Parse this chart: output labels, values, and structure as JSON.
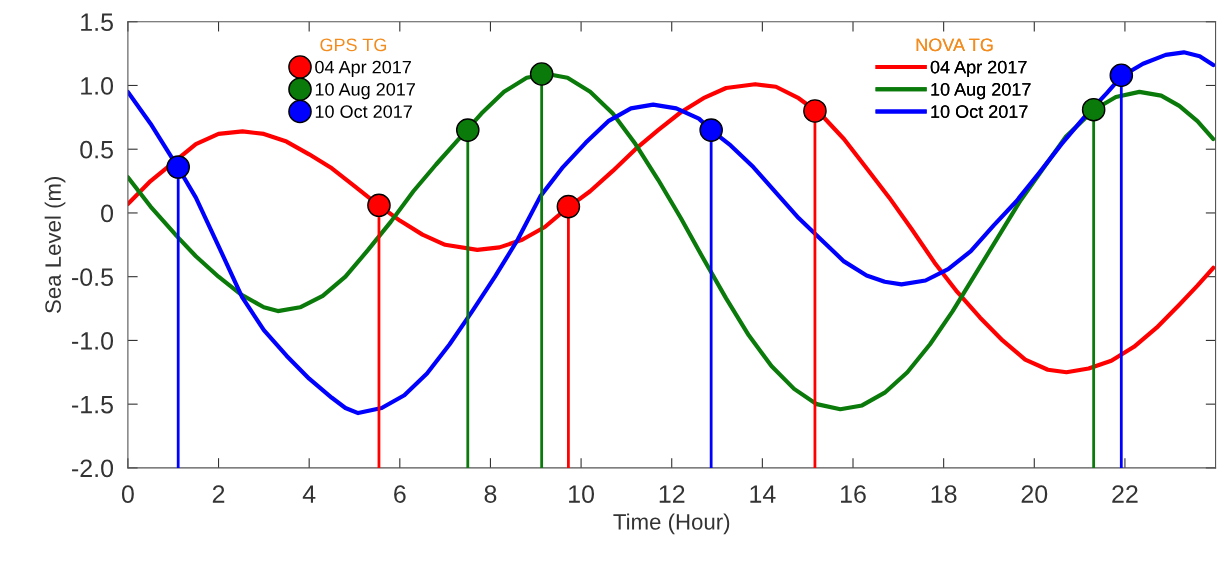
{
  "chart_data": {
    "type": "line",
    "xlabel": "Time (Hour)",
    "ylabel": "Sea Level (m)",
    "xlim": [
      0,
      24
    ],
    "xticks": [
      0,
      2,
      4,
      6,
      8,
      10,
      12,
      14,
      16,
      18,
      20,
      22
    ],
    "ylim": [
      -2.0,
      1.5
    ],
    "yticks": [
      {
        "value": -2.0,
        "label": "-2.0"
      },
      -1.5,
      {
        "value": -1.0,
        "label": "-1.0"
      },
      -0.5,
      0,
      0.5,
      {
        "value": 1.0,
        "label": "1.0"
      },
      1.5
    ],
    "grid": false,
    "legend": "top",
    "line_style": "solid",
    "annotations": [
      "GPS TG",
      "NOVA TG"
    ],
    "series": [
      {
        "name": "04 Apr 2017",
        "color": "#ff0000",
        "x": [
          0,
          0.5,
          1.5,
          2,
          2.53,
          3,
          3.5,
          4,
          4.5,
          5,
          5.5,
          6,
          6.5,
          7,
          7.71,
          8.2,
          8.7,
          9.2,
          9.7,
          10.2,
          10.7,
          11.2,
          11.7,
          12.2,
          12.7,
          13.2,
          13.84,
          14.3,
          14.8,
          15.3,
          15.8,
          16.3,
          16.8,
          17.3,
          17.8,
          18.3,
          18.8,
          19.3,
          19.8,
          20.3,
          20.71,
          21.2,
          21.7,
          22.2,
          22.7,
          23.2,
          23.6,
          23.95
        ],
        "values": [
          0.07,
          0.25,
          0.54,
          0.62,
          0.64,
          0.62,
          0.56,
          0.46,
          0.35,
          0.21,
          0.07,
          -0.06,
          -0.17,
          -0.25,
          -0.29,
          -0.27,
          -0.21,
          -0.11,
          0.04,
          0.17,
          0.33,
          0.5,
          0.65,
          0.79,
          0.9,
          0.98,
          1.01,
          0.99,
          0.9,
          0.77,
          0.58,
          0.35,
          0.12,
          -0.13,
          -0.39,
          -0.62,
          -0.82,
          -1.0,
          -1.15,
          -1.23,
          -1.25,
          -1.22,
          -1.16,
          -1.05,
          -0.9,
          -0.72,
          -0.57,
          -0.43
        ]
      },
      {
        "name": "10 Aug 2017",
        "color": "#0a7a0a",
        "x": [
          0,
          0.5,
          1.1,
          1.5,
          2,
          2.5,
          3,
          3.31,
          3.8,
          4.3,
          4.8,
          5.3,
          5.8,
          6.3,
          6.8,
          7.3,
          7.8,
          8.3,
          8.8,
          9.25,
          9.7,
          10.2,
          10.7,
          11.2,
          11.7,
          12.2,
          12.7,
          13.2,
          13.7,
          14.2,
          14.7,
          15.2,
          15.72,
          16.2,
          16.7,
          17.2,
          17.7,
          18.2,
          18.7,
          19.2,
          19.7,
          20.2,
          20.7,
          21.32,
          21.8,
          22.32,
          22.8,
          23.2,
          23.6,
          23.95
        ],
        "values": [
          0.28,
          0.05,
          -0.19,
          -0.34,
          -0.5,
          -0.64,
          -0.74,
          -0.77,
          -0.74,
          -0.65,
          -0.5,
          -0.29,
          -0.07,
          0.17,
          0.38,
          0.58,
          0.78,
          0.95,
          1.06,
          1.09,
          1.06,
          0.95,
          0.78,
          0.54,
          0.26,
          -0.04,
          -0.36,
          -0.67,
          -0.96,
          -1.2,
          -1.38,
          -1.5,
          -1.54,
          -1.51,
          -1.41,
          -1.25,
          -1.03,
          -0.77,
          -0.48,
          -0.19,
          0.1,
          0.35,
          0.6,
          0.81,
          0.91,
          0.95,
          0.92,
          0.84,
          0.72,
          0.58
        ]
      },
      {
        "name": "10 Oct 2017",
        "color": "#0000ff",
        "x": [
          0,
          0.5,
          1.1,
          1.5,
          2,
          2.52,
          3,
          3.5,
          4,
          4.5,
          4.8,
          5.08,
          5.6,
          6.1,
          6.6,
          7.1,
          7.6,
          8.1,
          8.6,
          9.1,
          9.6,
          10.1,
          10.6,
          11.1,
          11.59,
          12.1,
          12.6,
          12.87,
          13.3,
          13.8,
          14.3,
          14.8,
          15.3,
          15.8,
          16.3,
          16.7,
          17.07,
          17.6,
          18.1,
          18.6,
          19.1,
          19.6,
          20.1,
          20.6,
          21.1,
          21.6,
          21.92,
          22.4,
          22.9,
          23.3,
          23.65,
          23.95
        ],
        "values": [
          0.95,
          0.7,
          0.36,
          0.12,
          -0.26,
          -0.66,
          -0.92,
          -1.12,
          -1.3,
          -1.45,
          -1.53,
          -1.57,
          -1.53,
          -1.43,
          -1.26,
          -1.03,
          -0.77,
          -0.5,
          -0.21,
          0.13,
          0.36,
          0.55,
          0.72,
          0.82,
          0.85,
          0.82,
          0.74,
          0.65,
          0.53,
          0.36,
          0.16,
          -0.04,
          -0.21,
          -0.38,
          -0.49,
          -0.54,
          -0.56,
          -0.53,
          -0.44,
          -0.3,
          -0.1,
          0.09,
          0.31,
          0.54,
          0.75,
          0.94,
          1.07,
          1.17,
          1.24,
          1.26,
          1.23,
          1.16
        ]
      },
      {
        "type": "scatter",
        "marker": "circle",
        "name": "04 Apr 2017",
        "color": "#ff0000",
        "x": [
          5.54,
          9.72,
          15.16
        ],
        "values": [
          0.06,
          0.05,
          0.8
        ],
        "errors": [
          [
            -2.0,
            0.06
          ],
          [
            -2.0,
            0.05
          ],
          [
            -2.0,
            0.8
          ]
        ]
      },
      {
        "type": "scatter",
        "marker": "circle",
        "name": "10 Aug 2017",
        "color": "#0a7a0a",
        "x": [
          7.5,
          9.13,
          21.31
        ],
        "values": [
          0.65,
          1.09,
          0.81
        ],
        "errors": [
          [
            -2.0,
            0.65
          ],
          [
            -2.0,
            1.09
          ],
          [
            -2.0,
            0.81
          ]
        ]
      },
      {
        "type": "scatter",
        "marker": "circle",
        "name": "10 Oct 2017",
        "color": "#0000ff",
        "x": [
          1.11,
          12.87,
          21.92
        ],
        "values": [
          0.36,
          0.65,
          1.08
        ],
        "errors": [
          [
            -2.0,
            0.36
          ],
          [
            -2.0,
            0.65
          ],
          [
            -2.0,
            1.08
          ]
        ]
      }
    ]
  }
}
